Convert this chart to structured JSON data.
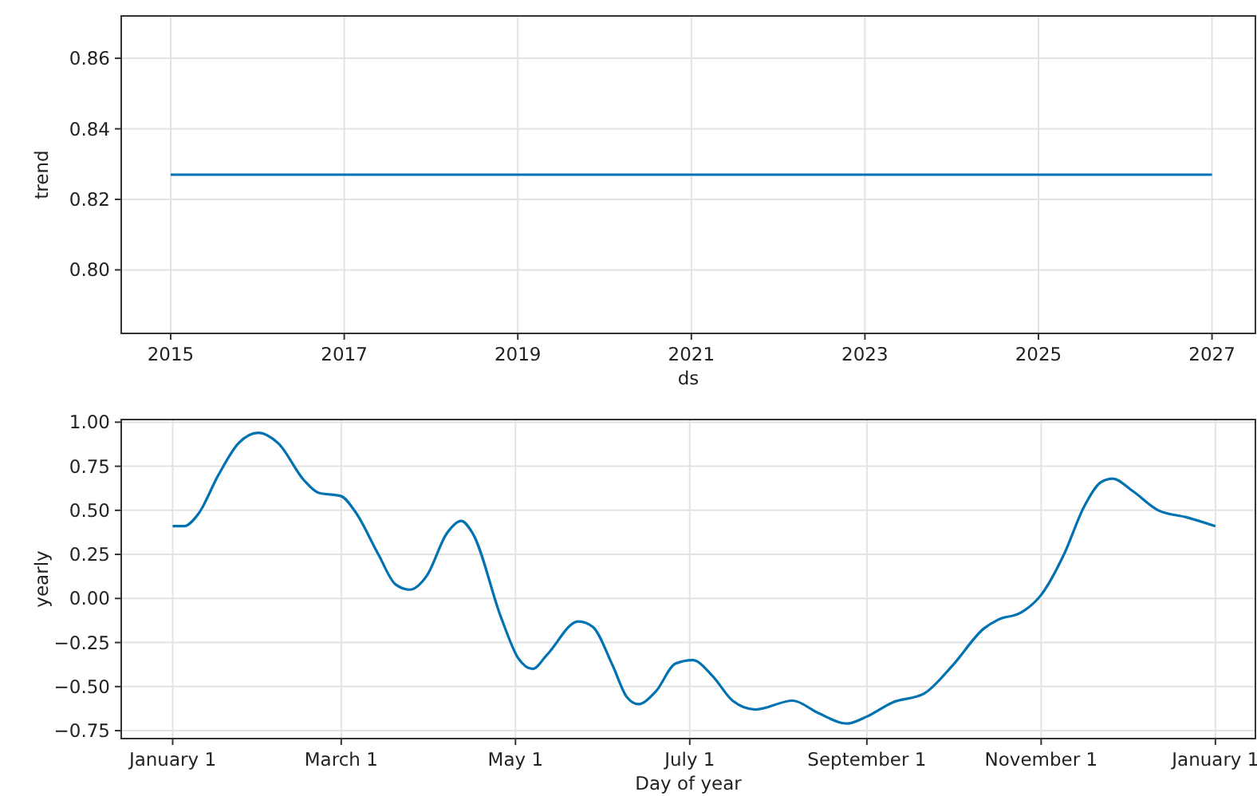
{
  "chart_data": [
    {
      "type": "line",
      "xlabel": "ds",
      "ylabel": "trend",
      "x": [
        2015,
        2027
      ],
      "series": [
        {
          "color": "#0072b2",
          "values": [
            0.827,
            0.827
          ]
        }
      ],
      "xlim": [
        2014.43,
        2027.5
      ],
      "xticks": [
        2015,
        2017,
        2019,
        2021,
        2023,
        2025,
        2027
      ],
      "ylim": [
        0.782,
        0.872
      ],
      "yticks": [
        {
          "value": 0.8,
          "label": "0.80"
        },
        {
          "value": 0.82,
          "label": "0.82"
        },
        {
          "value": 0.84,
          "label": "0.84"
        },
        {
          "value": 0.86,
          "label": "0.86"
        }
      ],
      "grid": true
    },
    {
      "type": "line",
      "xlabel": "Day of year",
      "ylabel": "yearly",
      "x": [
        "2017-01-01",
        "2017-01-05",
        "2017-01-10",
        "2017-01-17",
        "2017-01-24",
        "2017-01-31",
        "2017-02-07",
        "2017-02-16",
        "2017-02-21",
        "2017-03-01",
        "2017-03-06",
        "2017-03-14",
        "2017-03-20",
        "2017-03-25",
        "2017-03-31",
        "2017-04-07",
        "2017-04-12",
        "2017-04-16",
        "2017-04-26",
        "2017-05-02",
        "2017-05-07",
        "2017-05-12",
        "2017-05-23",
        "2017-05-28",
        "2017-06-04",
        "2017-06-09",
        "2017-06-13",
        "2017-06-19",
        "2017-06-26",
        "2017-07-02",
        "2017-07-09",
        "2017-07-16",
        "2017-07-24",
        "2017-08-06",
        "2017-08-15",
        "2017-08-25",
        "2017-09-01",
        "2017-09-10",
        "2017-09-21",
        "2017-10-01",
        "2017-10-12",
        "2017-10-17",
        "2017-10-25",
        "2017-11-01",
        "2017-11-09",
        "2017-11-16",
        "2017-11-22",
        "2017-11-26",
        "2017-12-03",
        "2017-12-12",
        "2017-12-22",
        "2018-01-01"
      ],
      "series": [
        {
          "color": "#0072b2",
          "values": [
            0.41,
            0.41,
            0.48,
            0.7,
            0.88,
            0.94,
            0.88,
            0.67,
            0.6,
            0.58,
            0.49,
            0.25,
            0.08,
            0.05,
            0.13,
            0.37,
            0.44,
            0.37,
            -0.11,
            -0.34,
            -0.4,
            -0.32,
            -0.13,
            -0.16,
            -0.38,
            -0.56,
            -0.6,
            -0.53,
            -0.37,
            -0.35,
            -0.44,
            -0.58,
            -0.63,
            -0.58,
            -0.65,
            -0.71,
            -0.67,
            -0.59,
            -0.54,
            -0.38,
            -0.17,
            -0.12,
            -0.08,
            0.02,
            0.25,
            0.52,
            0.66,
            0.68,
            0.61,
            0.5,
            0.46,
            0.41
          ]
        }
      ],
      "xlim": [
        "2016-12-14",
        "2018-01-15"
      ],
      "xticks": [
        {
          "value": "2017-01-01",
          "label": "January 1"
        },
        {
          "value": "2017-03-01",
          "label": "March 1"
        },
        {
          "value": "2017-05-01",
          "label": "May 1"
        },
        {
          "value": "2017-07-01",
          "label": "July 1"
        },
        {
          "value": "2017-09-01",
          "label": "September 1"
        },
        {
          "value": "2017-11-01",
          "label": "November 1"
        },
        {
          "value": "2018-01-01",
          "label": "January 1"
        }
      ],
      "ylim": [
        -0.795,
        1.015
      ],
      "yticks": [
        {
          "value": -0.75,
          "label": "−0.75"
        },
        {
          "value": -0.5,
          "label": "−0.50"
        },
        {
          "value": -0.25,
          "label": "−0.25"
        },
        {
          "value": 0,
          "label": "0.00"
        },
        {
          "value": 0.25,
          "label": "0.25"
        },
        {
          "value": 0.5,
          "label": "0.50"
        },
        {
          "value": 0.75,
          "label": "0.75"
        },
        {
          "value": 1,
          "label": "1.00"
        }
      ],
      "grid": true
    }
  ]
}
